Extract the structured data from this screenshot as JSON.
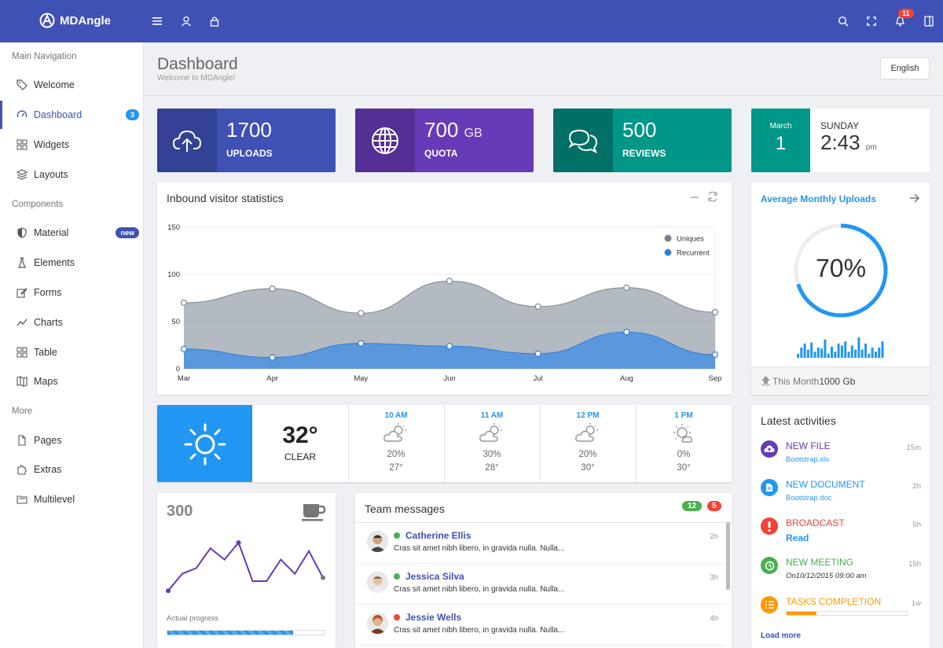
{
  "brand": {
    "name": "MDAngle"
  },
  "topbar": {
    "notif_count": "11"
  },
  "sidebar": {
    "sections": [
      "Main Navigation",
      "Components",
      "More"
    ],
    "items": [
      {
        "label": "Welcome"
      },
      {
        "label": "Dashboard",
        "badge": "3"
      },
      {
        "label": "Widgets"
      },
      {
        "label": "Layouts"
      },
      {
        "label": "Material",
        "badge": "new"
      },
      {
        "label": "Elements"
      },
      {
        "label": "Forms"
      },
      {
        "label": "Charts"
      },
      {
        "label": "Table"
      },
      {
        "label": "Maps"
      },
      {
        "label": "Pages"
      },
      {
        "label": "Extras"
      },
      {
        "label": "Multilevel"
      }
    ]
  },
  "header": {
    "title": "Dashboard",
    "subtitle": "Welcome to MDAngle!",
    "lang": "English"
  },
  "stats": [
    {
      "value": "1700",
      "unit": "",
      "label": "UPLOADS",
      "color": "#3f51b5"
    },
    {
      "value": "700",
      "unit": "GB",
      "label": "QUOTA",
      "color": "#673ab7"
    },
    {
      "value": "500",
      "unit": "",
      "label": "REVIEWS",
      "color": "#009688"
    }
  ],
  "date": {
    "month": "March",
    "day": "1",
    "weekday": "SUNDAY",
    "time": "2:43",
    "ampm": "pm"
  },
  "visitors": {
    "title": "Inbound visitor statistics"
  },
  "chart_data": {
    "type": "area",
    "title": "Inbound visitor statistics",
    "categories": [
      "Mar",
      "Apr",
      "May",
      "Jun",
      "Jul",
      "Aug",
      "Sep"
    ],
    "ylim": [
      0,
      150
    ],
    "yticks": [
      0,
      50,
      100,
      150
    ],
    "legend": "top-right",
    "series": [
      {
        "name": "Uniques",
        "color": "#9aa3ad",
        "values": [
          70,
          85,
          59,
          93,
          66,
          86,
          60
        ]
      },
      {
        "name": "Recurrent",
        "color": "#4a90e2",
        "values": [
          21,
          12,
          27,
          24,
          16,
          39,
          15
        ]
      }
    ]
  },
  "uploads": {
    "title": "Average Monthly Uploads",
    "percent": 70,
    "percent_label": "70%",
    "footer_prefix": "This Month",
    "footer_value": "1000 Gb",
    "bars": [
      4,
      10,
      14,
      8,
      15,
      6,
      10,
      9,
      18,
      4,
      11,
      6,
      14,
      12,
      16,
      6,
      12,
      8,
      20,
      8,
      14,
      4,
      10,
      6,
      10,
      16
    ]
  },
  "weather": {
    "temp": "32°",
    "cond": "CLEAR",
    "hours": [
      {
        "time": "10 AM",
        "pct": "20%",
        "deg": "27°"
      },
      {
        "time": "11 AM",
        "pct": "30%",
        "deg": "28°"
      },
      {
        "time": "12 PM",
        "pct": "20%",
        "deg": "30°"
      },
      {
        "time": "1 PM",
        "pct": "0%",
        "deg": "30°"
      }
    ]
  },
  "activities": {
    "title": "Latest activities",
    "items": [
      {
        "title": "NEW FILE",
        "sub": "Bootstrap.xls",
        "time": "15m",
        "color": "#673ab7"
      },
      {
        "title": "NEW DOCUMENT",
        "sub": "Bootstrap.doc",
        "time": "2h",
        "color": "#2196f3"
      },
      {
        "title": "BROADCAST",
        "sub": "Read",
        "time": "5h",
        "color": "#f44336"
      },
      {
        "title": "NEW MEETING",
        "sub": "On10/12/2015 09:00 am",
        "time": "15h",
        "color": "#4caf50"
      },
      {
        "title": "TASKS COMPLETION",
        "sub": "",
        "time": "1w",
        "color": "#ff9800",
        "progress": 0.25
      }
    ],
    "load_more": "Load more"
  },
  "progress": {
    "value": "300",
    "label": "Actual progress",
    "fill": 0.8,
    "spark": [
      15,
      45,
      55,
      90,
      70,
      100,
      32,
      32,
      70,
      45,
      85,
      38
    ]
  },
  "messages": {
    "title": "Team messages",
    "badge_green": "12",
    "badge_red": "5",
    "items": [
      {
        "name": "Catherine Ellis",
        "text": "Cras sit amet nibh libero, in gravida nulla. Nulla...",
        "time": "2h",
        "status": "#4caf50"
      },
      {
        "name": "Jessica Silva",
        "text": "Cras sit amet nibh libero, in gravida nulla. Nulla...",
        "time": "3h",
        "status": "#4caf50"
      },
      {
        "name": "Jessie Wells",
        "text": "Cras sit amet nibh libero, in gravida nulla. Nulla...",
        "time": "4h",
        "status": "#f44336"
      }
    ]
  }
}
